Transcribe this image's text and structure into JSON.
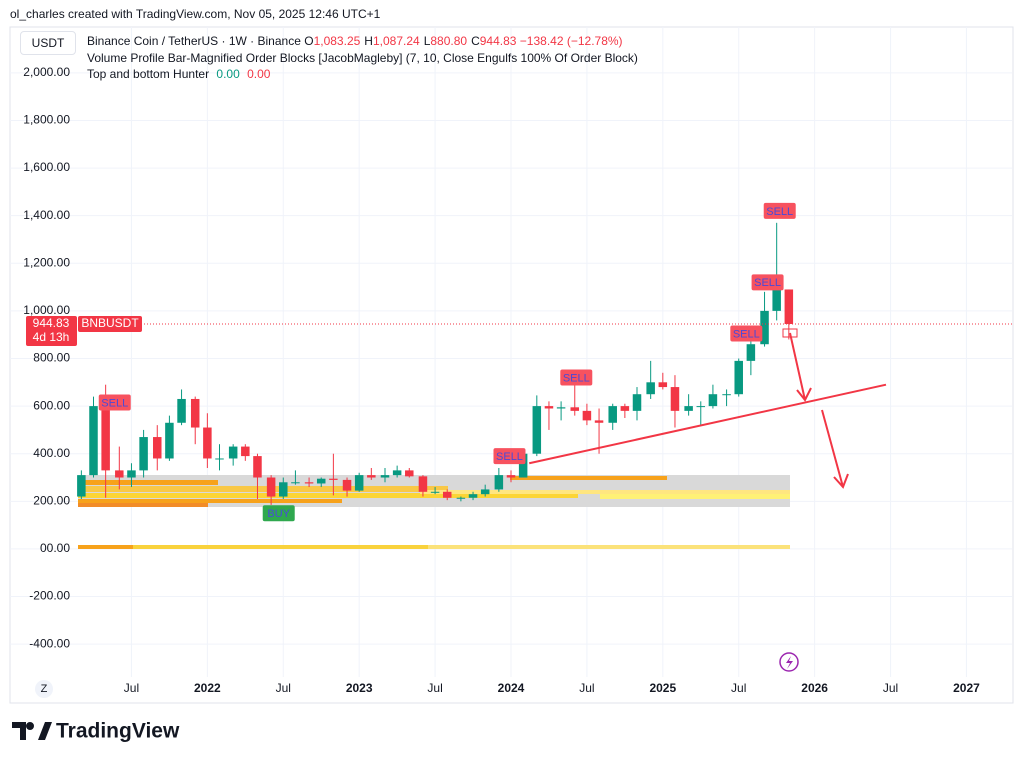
{
  "header": {
    "credit": "ol_charles created with TradingView.com, Nov 05, 2025 12:46 UTC+1",
    "currency": "USDT",
    "symbol": "Binance Coin / TetherUS · 1W · Binance",
    "ohlc": [
      {
        "label": "O",
        "value": "1,083.25"
      },
      {
        "label": "H",
        "value": "1,087.24"
      },
      {
        "label": "L",
        "value": "880.80"
      },
      {
        "label": "C",
        "value": "944.83"
      }
    ],
    "change": "−138.42 (−12.78%)",
    "indicator_1": "Volume Profile Bar-Magnified Order Blocks [JacobMagleby] (7, 10, Close Engulfs 100% Of Order Block)",
    "indicator_2": {
      "name": "Top and bottom Hunter",
      "value_1": "0.00",
      "value_2": "0.00"
    }
  },
  "footer": {
    "logo": "TradingView",
    "timezone_button": "Z"
  },
  "chart_data": {
    "type": "candlestick",
    "up_color": "#089981",
    "down_color": "#f23645",
    "grid": true,
    "x": [
      2021.17,
      2021.25,
      2021.33,
      2021.42,
      2021.5,
      2021.58,
      2021.67,
      2021.75,
      2021.83,
      2021.92,
      2022.0,
      2022.08,
      2022.17,
      2022.25,
      2022.33,
      2022.42,
      2022.5,
      2022.58,
      2022.67,
      2022.75,
      2022.83,
      2022.92,
      2023.0,
      2023.08,
      2023.17,
      2023.25,
      2023.33,
      2023.42,
      2023.5,
      2023.58,
      2023.67,
      2023.75,
      2023.83,
      2023.92,
      2024.0,
      2024.08,
      2024.17,
      2024.25,
      2024.33,
      2024.42,
      2024.5,
      2024.58,
      2024.67,
      2024.75,
      2024.83,
      2024.92,
      2025.0,
      2025.08,
      2025.17,
      2025.25,
      2025.33,
      2025.42,
      2025.5,
      2025.58,
      2025.67,
      2025.75,
      2025.83
    ],
    "open": [
      220,
      310,
      600,
      330,
      300,
      330,
      470,
      380,
      530,
      630,
      510,
      380,
      380,
      430,
      390,
      300,
      220,
      280,
      280,
      275,
      295,
      290,
      245,
      310,
      300,
      310,
      330,
      305,
      240,
      240,
      215,
      215,
      230,
      250,
      310,
      300,
      400,
      600,
      590,
      595,
      580,
      540,
      530,
      600,
      580,
      650,
      700,
      680,
      580,
      600,
      600,
      650,
      650,
      790,
      860,
      1000,
      1090
    ],
    "high": [
      330,
      640,
      690,
      430,
      360,
      500,
      520,
      560,
      670,
      640,
      570,
      440,
      440,
      440,
      400,
      310,
      300,
      330,
      300,
      300,
      400,
      300,
      320,
      340,
      340,
      350,
      340,
      310,
      260,
      250,
      220,
      240,
      270,
      340,
      330,
      420,
      645,
      620,
      620,
      720,
      610,
      590,
      610,
      610,
      680,
      790,
      740,
      730,
      650,
      620,
      690,
      670,
      800,
      900,
      1080,
      1370,
      1090
    ],
    "low": [
      210,
      300,
      215,
      250,
      260,
      300,
      330,
      370,
      520,
      440,
      340,
      330,
      350,
      370,
      210,
      185,
      210,
      270,
      260,
      260,
      225,
      220,
      240,
      290,
      280,
      300,
      300,
      220,
      230,
      205,
      200,
      205,
      220,
      240,
      280,
      300,
      390,
      500,
      540,
      560,
      520,
      400,
      500,
      550,
      540,
      630,
      670,
      510,
      560,
      520,
      590,
      600,
      640,
      730,
      850,
      960,
      880
    ],
    "close": [
      310,
      600,
      330,
      300,
      330,
      470,
      380,
      530,
      630,
      510,
      380,
      380,
      430,
      390,
      300,
      220,
      280,
      280,
      275,
      295,
      290,
      245,
      310,
      300,
      310,
      330,
      305,
      240,
      240,
      215,
      215,
      230,
      250,
      310,
      300,
      400,
      600,
      590,
      595,
      580,
      540,
      530,
      600,
      580,
      650,
      700,
      680,
      580,
      600,
      600,
      650,
      650,
      790,
      860,
      1000,
      1090,
      945
    ],
    "xlim": [
      2020.7,
      2027.3
    ],
    "xticks": [
      {
        "value": 2021.5,
        "label": "Jul"
      },
      2022,
      {
        "value": 2022.5,
        "label": "Jul"
      },
      2023,
      {
        "value": 2023.5,
        "label": "Jul"
      },
      2024,
      {
        "value": 2024.5,
        "label": "Jul"
      },
      2025,
      {
        "value": 2025.5,
        "label": "Jul"
      },
      2026,
      {
        "value": 2026.5,
        "label": "Jul"
      },
      2027
    ],
    "ylim": [
      -517,
      2180
    ],
    "yticks": [
      {
        "value": 2000,
        "label": "2,000.00"
      },
      {
        "value": 1800,
        "label": "1,800.00"
      },
      {
        "value": 1600,
        "label": "1,600.00"
      },
      {
        "value": 1400,
        "label": "1,400.00"
      },
      {
        "value": 1200,
        "label": "1,200.00"
      },
      {
        "value": 1000,
        "label": "1,000.00"
      },
      {
        "value": 800,
        "label": "800.00"
      },
      {
        "value": 600,
        "label": "600.00"
      },
      {
        "value": 400,
        "label": "400.00"
      },
      {
        "value": 200,
        "label": "200.00"
      },
      {
        "value": 0,
        "label": "00.00"
      },
      {
        "value": -200,
        "label": "-200.00"
      },
      {
        "value": -400,
        "label": "-400.00"
      }
    ],
    "price_label": {
      "value": 944.83,
      "symbol": "BNBUSDT",
      "countdown": "4d 13h"
    },
    "signals": [
      {
        "label": "SELL",
        "x": 2021.39,
        "y": 615
      },
      {
        "label": "BUY",
        "x": 2022.47,
        "y": 150
      },
      {
        "label": "SELL",
        "x": 2023.99,
        "y": 390
      },
      {
        "label": "SELL",
        "x": 2024.43,
        "y": 720
      },
      {
        "label": "SELL",
        "x": 2025.55,
        "y": 905
      },
      {
        "label": "SELL",
        "x": 2025.69,
        "y": 1120
      },
      {
        "label": "SELL",
        "x": 2025.77,
        "y": 1420
      }
    ],
    "trendline": {
      "x": [
        2024.12,
        2026.47
      ],
      "y": [
        360,
        690
      ]
    }
  }
}
